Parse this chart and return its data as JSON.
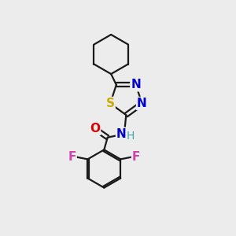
{
  "bg_color": "#ececec",
  "bond_color": "#1a1a1a",
  "bond_width": 1.6,
  "atoms": {
    "S": {
      "color": "#ccaa00",
      "fontsize": 11,
      "fontweight": "bold"
    },
    "N": {
      "color": "#0000cc",
      "fontsize": 11,
      "fontweight": "bold"
    },
    "O": {
      "color": "#dd0000",
      "fontsize": 11,
      "fontweight": "bold"
    },
    "F": {
      "color": "#cc44aa",
      "fontsize": 11,
      "fontweight": "bold"
    },
    "H": {
      "color": "#44aaaa",
      "fontsize": 10,
      "fontweight": "normal"
    }
  }
}
